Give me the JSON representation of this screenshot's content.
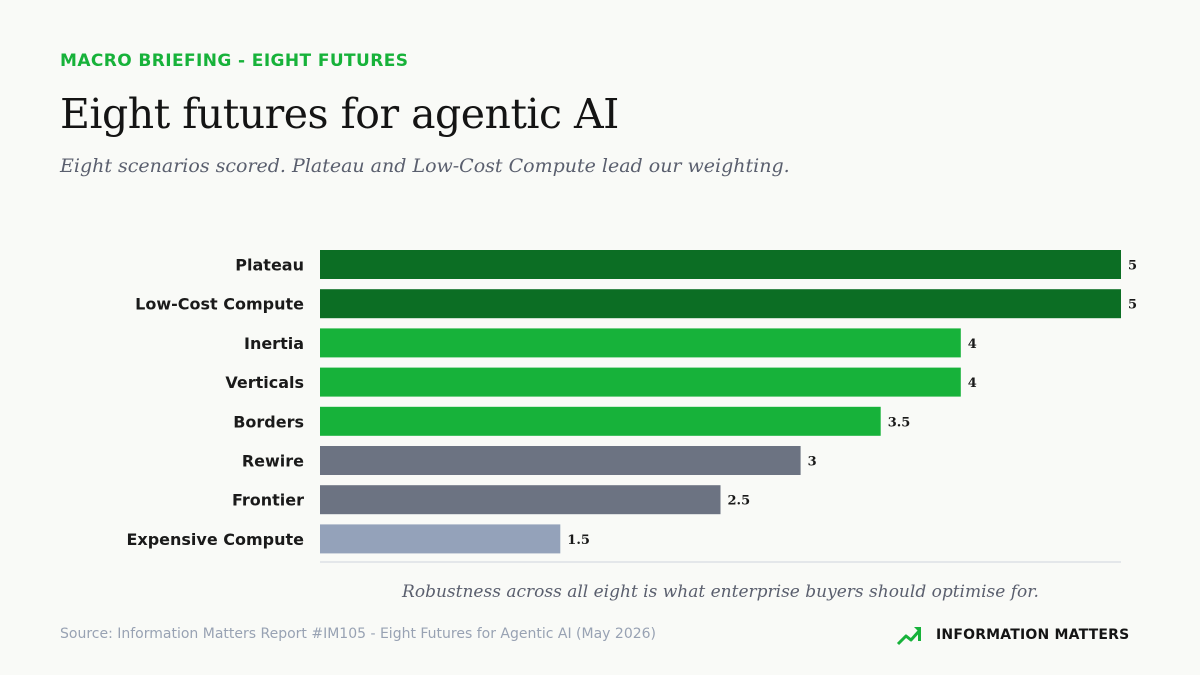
{
  "header": {
    "kicker": "MACRO BRIEFING - EIGHT FUTURES",
    "title": "Eight futures for agentic AI",
    "subtitle": "Eight scenarios scored. Plateau and Low-Cost Compute lead our weighting."
  },
  "chart_data": {
    "type": "bar",
    "orientation": "horizontal",
    "categories": [
      "Plateau",
      "Low-Cost Compute",
      "Inertia",
      "Verticals",
      "Borders",
      "Rewire",
      "Frontier",
      "Expensive Compute"
    ],
    "values": [
      5,
      5,
      4,
      4,
      3.5,
      3,
      2.5,
      1.5
    ],
    "value_labels": [
      "5",
      "5",
      "4",
      "4",
      "3.5",
      "3",
      "2.5",
      "1.5"
    ],
    "colors": [
      "#0c6e24",
      "#0c6e24",
      "#17b23a",
      "#17b23a",
      "#17b23a",
      "#6c7382",
      "#6c7382",
      "#94a2ba"
    ],
    "xlim": [
      0,
      5
    ],
    "grid": false
  },
  "footer": {
    "caption": "Robustness across all eight is what enterprise buyers should optimise for.",
    "source": "Source: Information Matters Report #IM105 - Eight Futures for Agentic AI (May 2026)",
    "brand": "INFORMATION MATTERS",
    "brand_icon": "trend-up-icon",
    "brand_color": "#17b23a"
  }
}
